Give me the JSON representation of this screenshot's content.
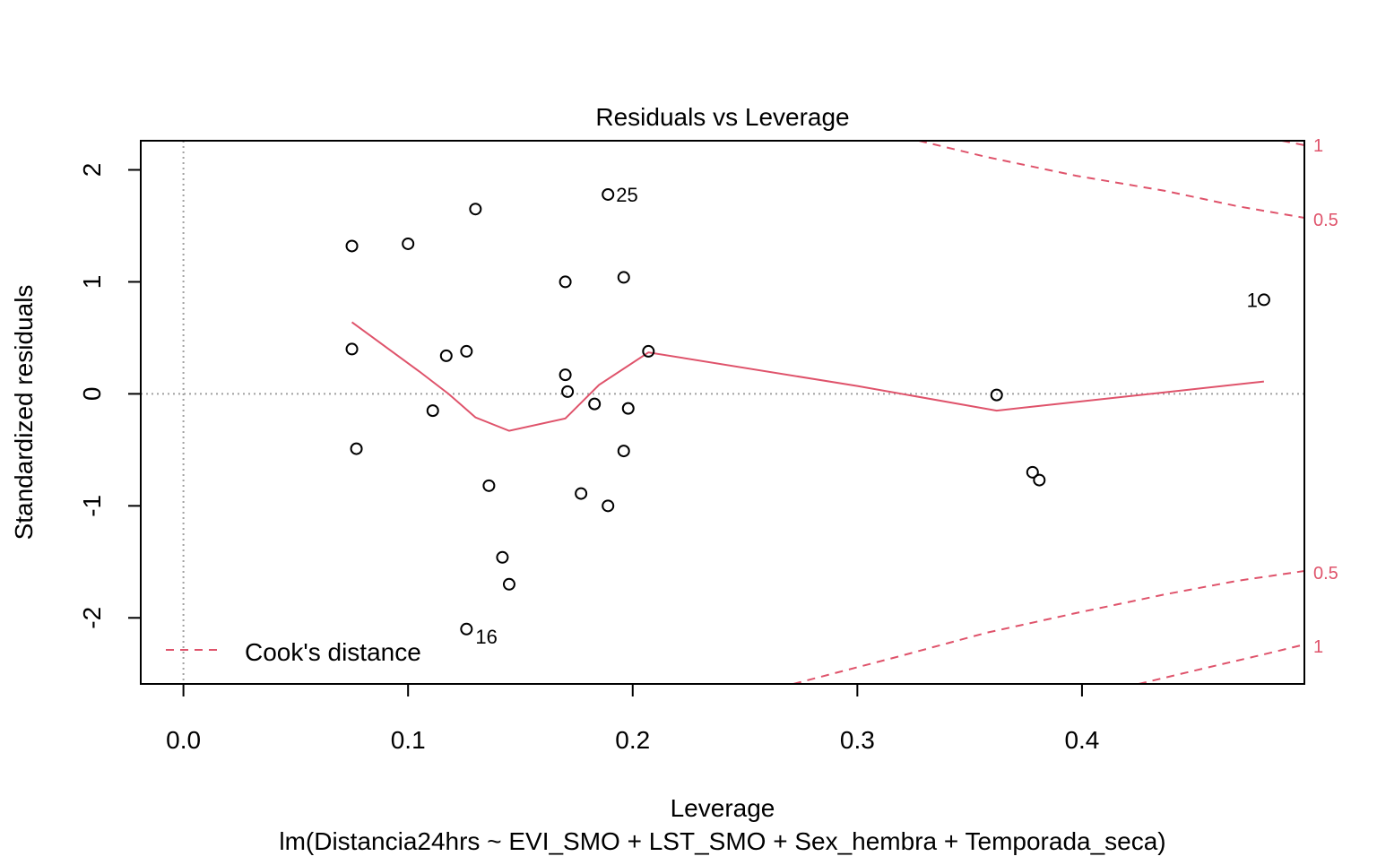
{
  "chart_data": {
    "type": "scatter",
    "title": "Residuals vs Leverage",
    "xlabel": "Leverage",
    "ylabel": "Standardized residuals",
    "subtitle": "lm(Distancia24hrs ~ EVI_SMO + LST_SMO + Sex_hembra + Temporada_seca)",
    "xlim": [
      -0.019,
      0.499
    ],
    "ylim": [
      -2.59,
      2.26
    ],
    "x_ticks": [
      0.0,
      0.1,
      0.2,
      0.3,
      0.4
    ],
    "x_tick_labels": [
      "0.0",
      "0.1",
      "0.2",
      "0.3",
      "0.4"
    ],
    "y_ticks": [
      -2,
      -1,
      0,
      1,
      2
    ],
    "y_tick_labels": [
      "-2",
      "-1",
      "0",
      "1",
      "2"
    ],
    "points": [
      {
        "x": 0.075,
        "y": 1.32,
        "label": ""
      },
      {
        "x": 0.075,
        "y": 0.4,
        "label": ""
      },
      {
        "x": 0.077,
        "y": -0.49,
        "label": ""
      },
      {
        "x": 0.1,
        "y": 1.34,
        "label": ""
      },
      {
        "x": 0.111,
        "y": -0.15,
        "label": ""
      },
      {
        "x": 0.117,
        "y": 0.34,
        "label": ""
      },
      {
        "x": 0.126,
        "y": 0.38,
        "label": ""
      },
      {
        "x": 0.126,
        "y": -2.1,
        "label": "16"
      },
      {
        "x": 0.13,
        "y": 1.65,
        "label": ""
      },
      {
        "x": 0.136,
        "y": -0.82,
        "label": ""
      },
      {
        "x": 0.142,
        "y": -1.46,
        "label": ""
      },
      {
        "x": 0.145,
        "y": -1.7,
        "label": ""
      },
      {
        "x": 0.17,
        "y": 1.0,
        "label": ""
      },
      {
        "x": 0.17,
        "y": 0.17,
        "label": ""
      },
      {
        "x": 0.171,
        "y": 0.02,
        "label": ""
      },
      {
        "x": 0.177,
        "y": -0.89,
        "label": ""
      },
      {
        "x": 0.183,
        "y": -0.09,
        "label": ""
      },
      {
        "x": 0.189,
        "y": 1.78,
        "label": "25"
      },
      {
        "x": 0.189,
        "y": -1.0,
        "label": ""
      },
      {
        "x": 0.196,
        "y": 1.04,
        "label": ""
      },
      {
        "x": 0.196,
        "y": -0.51,
        "label": ""
      },
      {
        "x": 0.198,
        "y": -0.13,
        "label": ""
      },
      {
        "x": 0.207,
        "y": 0.38,
        "label": ""
      },
      {
        "x": 0.362,
        "y": -0.01,
        "label": ""
      },
      {
        "x": 0.378,
        "y": -0.7,
        "label": ""
      },
      {
        "x": 0.381,
        "y": -0.77,
        "label": ""
      },
      {
        "x": 0.481,
        "y": 0.84,
        "label": "1"
      }
    ],
    "smooth_line": {
      "color": "#DF536B",
      "x": [
        0.075,
        0.09,
        0.105,
        0.118,
        0.13,
        0.145,
        0.17,
        0.185,
        0.207,
        0.3,
        0.362,
        0.38,
        0.481
      ],
      "y": [
        0.64,
        0.42,
        0.2,
        0.0,
        -0.21,
        -0.33,
        -0.22,
        0.08,
        0.37,
        0.07,
        -0.15,
        -0.11,
        0.11
      ]
    },
    "cook_lines": {
      "color": "#DF536B",
      "legend_label": "Cook's distance",
      "legend_position": "bottomleft",
      "labels": [
        "1",
        "0.5",
        "0.5",
        "1"
      ]
    },
    "grid": false
  }
}
